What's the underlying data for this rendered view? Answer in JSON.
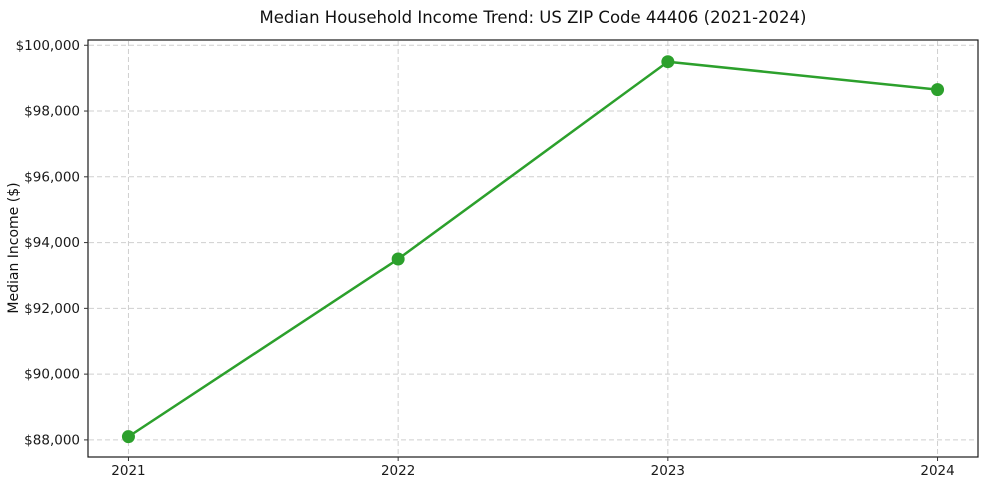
{
  "chart_data": {
    "type": "line",
    "title": "Median Household Income Trend: US ZIP Code 44406 (2021-2024)",
    "xlabel": "",
    "ylabel": "Median Income ($)",
    "x": [
      2021,
      2022,
      2023,
      2024
    ],
    "x_labels": [
      "2021",
      "2022",
      "2023",
      "2024"
    ],
    "series": [
      {
        "name": "Median Household Income",
        "values": [
          88100,
          93500,
          99500,
          98650
        ]
      }
    ],
    "y_ticks": [
      {
        "value": 88000,
        "label": "$88,000"
      },
      {
        "value": 90000,
        "label": "$90,000"
      },
      {
        "value": 92000,
        "label": "$92,000"
      },
      {
        "value": 94000,
        "label": "$94,000"
      },
      {
        "value": 96000,
        "label": "$96,000"
      },
      {
        "value": 98000,
        "label": "$98,000"
      },
      {
        "value": 100000,
        "label": "$100,000"
      }
    ],
    "xlim": [
      2020.85,
      2024.15
    ],
    "ylim": [
      87480,
      100160
    ],
    "grid": true,
    "grid_style": "dashed",
    "legend_position": "none",
    "line_color": "#2ca02c",
    "marker": "circle",
    "grid_color": "#cfcfcf",
    "spine_color": "#1a1a1a",
    "tick_color": "#333333"
  }
}
